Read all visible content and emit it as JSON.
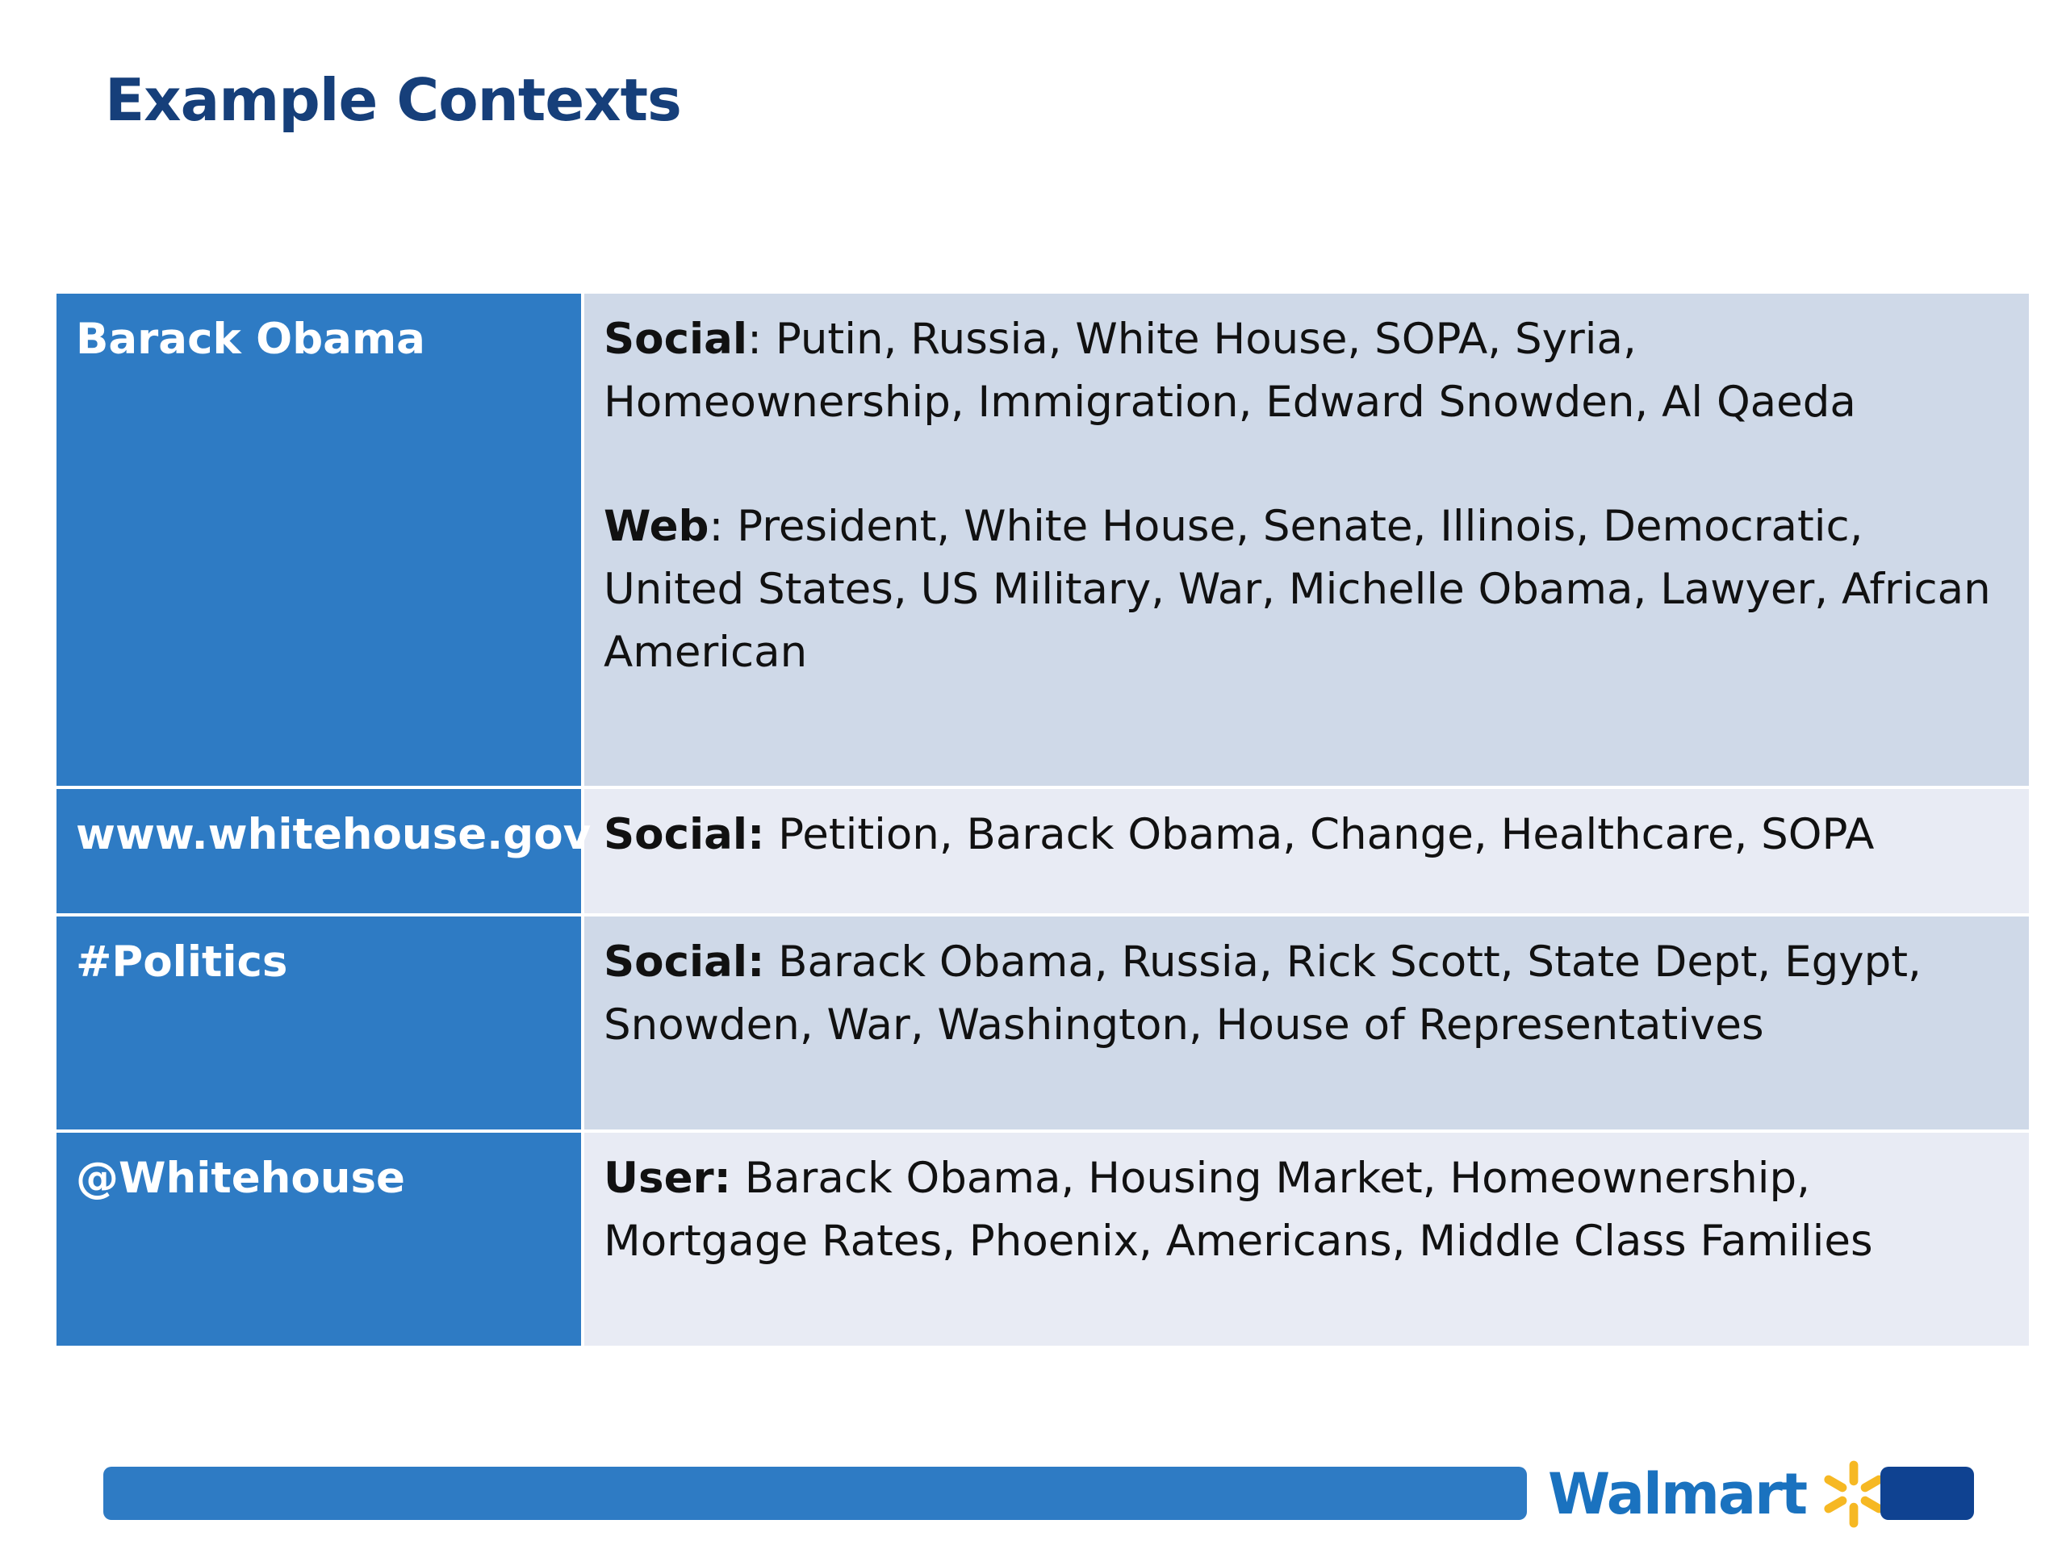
{
  "slide": {
    "title": "Example Contexts"
  },
  "rows": [
    {
      "key": "Barack Obama",
      "entries": [
        {
          "label": "Social",
          "text": ": Putin, Russia, White House, SOPA, Syria, Homeownership, Immigration,  Edward Snowden, Al Qaeda"
        },
        {
          "label": "Web",
          "text": ": President, White House, Senate, Illinois, Democratic, United States, US Military, War, Michelle Obama, Lawyer, African American"
        }
      ]
    },
    {
      "key": "www.whitehouse.gov",
      "entries": [
        {
          "label": "Social:",
          "text": " Petition, Barack Obama, Change, Healthcare, SOPA"
        }
      ]
    },
    {
      "key": "#Politics",
      "entries": [
        {
          "label": "Social:",
          "text": " Barack Obama, Russia, Rick Scott, State Dept, Egypt, Snowden, War, Washington, House of Representatives"
        }
      ]
    },
    {
      "key": "@Whitehouse",
      "entries": [
        {
          "label": "User:",
          "text": " Barack Obama, Housing Market, Homeownership, Mortgage Rates, Phoenix, Americans, Middle Class Families"
        }
      ]
    }
  ],
  "footer": {
    "logo_text": "Walmart",
    "logo_icon": "walmart-spark-icon"
  },
  "colors": {
    "title": "#163f7a",
    "key_cell": "#2e7bc4",
    "value_row_dark": "#cfd9e8",
    "value_row_light": "#e8ebf4",
    "footer_bar": "#2e7bc4",
    "footer_block": "#0f4291",
    "spark": "#f6b823"
  }
}
